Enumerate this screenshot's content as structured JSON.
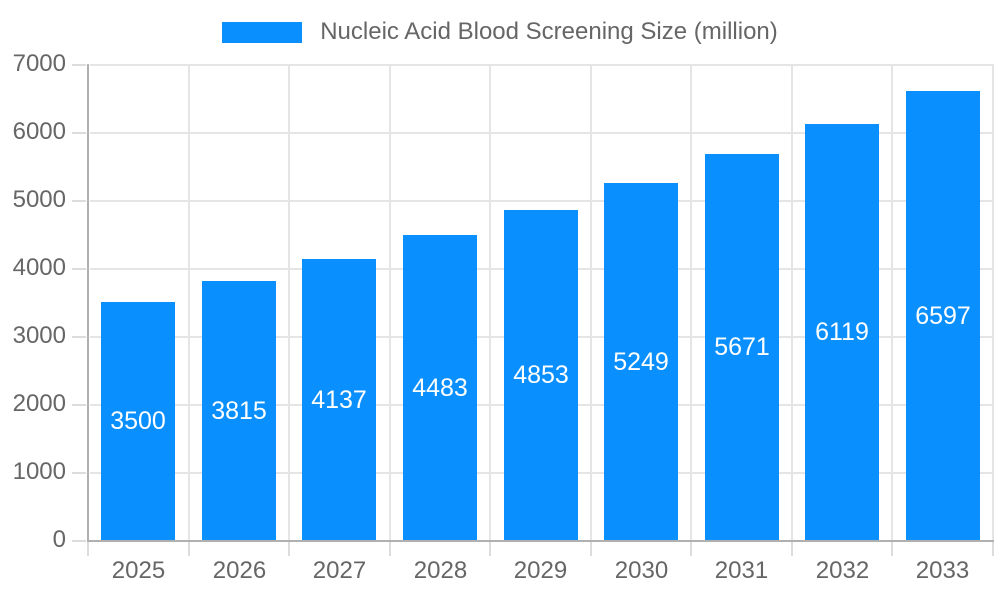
{
  "chart_data": {
    "type": "bar",
    "categories": [
      "2025",
      "2026",
      "2027",
      "2028",
      "2029",
      "2030",
      "2031",
      "2032",
      "2033"
    ],
    "values": [
      3500,
      3815,
      4137,
      4483,
      4853,
      5249,
      5671,
      6119,
      6597
    ],
    "legend_label": "Nucleic Acid Blood Screening Size (million)",
    "title": "",
    "xlabel": "",
    "ylabel": "",
    "ylim": [
      0,
      7000
    ],
    "ytick_step": 1000,
    "grid": true,
    "legend_position": "top-center",
    "bar_value_labels": "centered-inside-white"
  },
  "colors": {
    "bar": "#0a8fff",
    "bar_label_text": "#ffffff",
    "axis_text": "#666666",
    "legend_text": "#666666",
    "grid_line": "#e5e5e5",
    "tick_line": "#dcdcdc",
    "axis_line": "#b0b0b0",
    "background": "#ffffff"
  }
}
